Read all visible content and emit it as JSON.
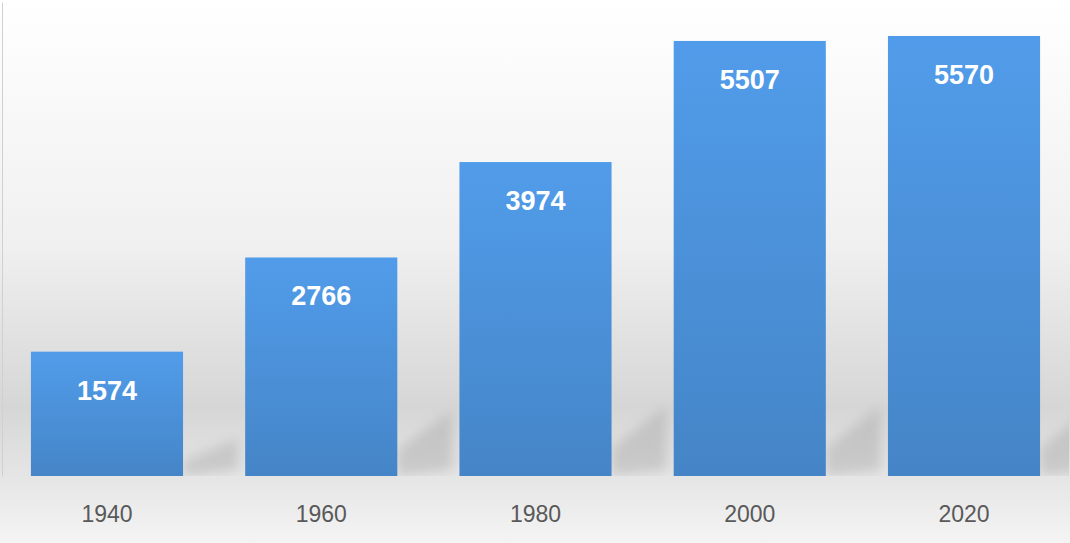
{
  "chart_data": {
    "type": "bar",
    "categories": [
      "1940",
      "1960",
      "1980",
      "2000",
      "2020"
    ],
    "values": [
      1574,
      2766,
      3974,
      5507,
      5570
    ],
    "color": "#4a8fd6",
    "ylim": [
      0,
      6000
    ],
    "data_labels": true,
    "tick_labels": "x",
    "grid": false
  }
}
